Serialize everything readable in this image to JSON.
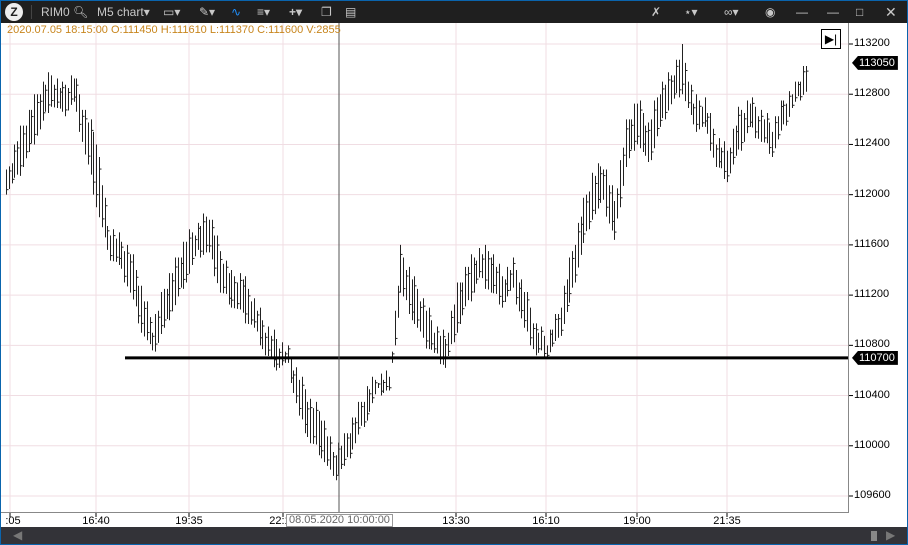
{
  "toolbar": {
    "symbol": "RIM0",
    "chart_type": "M5 chart",
    "logo_text": "Z",
    "icons_left": [
      "search-icon",
      "monitor-icon",
      "pencil-icon",
      "line-chart-icon",
      "indicators-icon",
      "plus-icon",
      "window-icon",
      "panel-icon"
    ],
    "icons_right": [
      "tools-icon",
      "crosshair-icon",
      "link-icon",
      "camera-icon",
      "pin-icon",
      "minimize-icon",
      "maximize-icon",
      "close-icon"
    ]
  },
  "info_line": "2020.07.05 18:15:00 O:111450 H:111610 L:111370 C:111600 V:2855",
  "colors": {
    "accent": "#1e90ff",
    "info": "#c8861e",
    "grid": "#f0dde3",
    "bars": "#000000",
    "titlebar": "#1f1f1f"
  },
  "chart_data": {
    "type": "ohlc",
    "y_ticks": [
      "113200",
      "112800",
      "112400",
      "112000",
      "111600",
      "111200",
      "110800",
      "110400",
      "110000",
      "109600"
    ],
    "x_ticks": [
      ":05",
      "16:40",
      "19:35",
      "22:10",
      "13:30",
      "16:10",
      "19:00",
      "21:35"
    ],
    "ylim": [
      109600,
      113200
    ],
    "last_price": "113050",
    "horizontal_line": "110700",
    "crosshair_time": "08.05.2020 10:00:00",
    "bars": [
      [
        112200,
        112000
      ],
      [
        112500,
        112100
      ],
      [
        112700,
        112300
      ],
      [
        112900,
        112500
      ],
      [
        113000,
        112700
      ],
      [
        112900,
        112600
      ],
      [
        113000,
        112700
      ],
      [
        112700,
        112300
      ],
      [
        112500,
        111900
      ],
      [
        111800,
        111500
      ],
      [
        111700,
        111400
      ],
      [
        111600,
        111200
      ],
      [
        111300,
        110900
      ],
      [
        111000,
        110700
      ],
      [
        111300,
        110900
      ],
      [
        111500,
        111100
      ],
      [
        111700,
        111300
      ],
      [
        111800,
        111500
      ],
      [
        111900,
        111500
      ],
      [
        111600,
        111200
      ],
      [
        111400,
        111100
      ],
      [
        111400,
        111000
      ],
      [
        111200,
        110900
      ],
      [
        111000,
        110700
      ],
      [
        110900,
        110600
      ],
      [
        110800,
        110600
      ],
      [
        110600,
        110200
      ],
      [
        110400,
        110000
      ],
      [
        110300,
        109900
      ],
      [
        110000,
        109700
      ],
      [
        110100,
        109800
      ],
      [
        110300,
        110000
      ],
      [
        110500,
        110200
      ],
      [
        110600,
        110400
      ],
      [
        110600,
        110400
      ],
      [
        111600,
        111200
      ],
      [
        111400,
        111000
      ],
      [
        111200,
        110800
      ],
      [
        111000,
        110700
      ],
      [
        110900,
        110600
      ],
      [
        111300,
        110900
      ],
      [
        111500,
        111100
      ],
      [
        111600,
        111300
      ],
      [
        111600,
        111200
      ],
      [
        111400,
        111100
      ],
      [
        111500,
        111200
      ],
      [
        111300,
        110900
      ],
      [
        111000,
        110700
      ],
      [
        110900,
        110700
      ],
      [
        111100,
        110800
      ],
      [
        111500,
        111100
      ],
      [
        111900,
        111500
      ],
      [
        112200,
        111800
      ],
      [
        112300,
        111900
      ],
      [
        112000,
        111600
      ],
      [
        112600,
        112200
      ],
      [
        112800,
        112400
      ],
      [
        112600,
        112200
      ],
      [
        112900,
        112500
      ],
      [
        113000,
        112700
      ],
      [
        113200,
        112800
      ],
      [
        112800,
        112500
      ],
      [
        112800,
        112500
      ],
      [
        112500,
        112200
      ],
      [
        112400,
        112100
      ],
      [
        112700,
        112300
      ],
      [
        112800,
        112500
      ],
      [
        112700,
        112400
      ],
      [
        112600,
        112300
      ],
      [
        112800,
        112500
      ],
      [
        112900,
        112700
      ],
      [
        113100,
        112800
      ]
    ]
  }
}
